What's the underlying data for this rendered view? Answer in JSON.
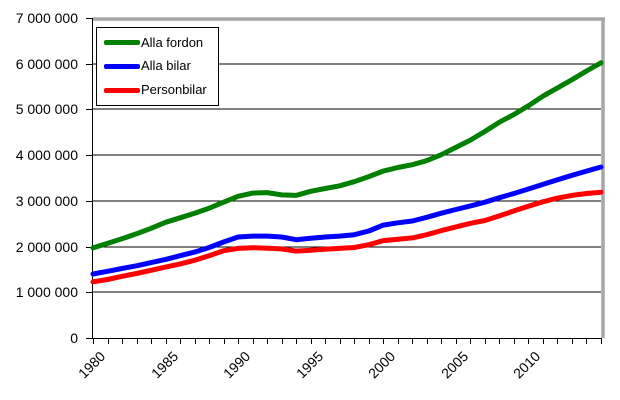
{
  "chart_data": {
    "type": "line",
    "title": "",
    "xlabel": "",
    "ylabel": "",
    "grid": true,
    "legend_position": "top-left",
    "axis_color": "#000000",
    "border_shadow_color": "#a6a6a6",
    "background_color": "#ffffff",
    "ylim": [
      0,
      7000000
    ],
    "ytick_step": 1000000,
    "ytick_labels": [
      "0",
      "1 000 000",
      "2 000 000",
      "3 000 000",
      "4 000 000",
      "5 000 000",
      "6 000 000",
      "7 000 000"
    ],
    "xtick_years_labeled": [
      1980,
      1985,
      1990,
      1995,
      2000,
      2005,
      2010
    ],
    "x": [
      1980,
      1981,
      1982,
      1983,
      1984,
      1985,
      1986,
      1987,
      1988,
      1989,
      1990,
      1991,
      1992,
      1993,
      1994,
      1995,
      1996,
      1997,
      1998,
      1999,
      2000,
      2001,
      2002,
      2003,
      2004,
      2005,
      2006,
      2007,
      2008,
      2009,
      2010,
      2011,
      2012,
      2013,
      2014,
      2015
    ],
    "series": [
      {
        "name": "Alla fordon",
        "color": "#008000",
        "values": [
          1970000,
          2070000,
          2170000,
          2280000,
          2400000,
          2530000,
          2630000,
          2730000,
          2840000,
          2970000,
          3100000,
          3170000,
          3180000,
          3130000,
          3120000,
          3210000,
          3270000,
          3330000,
          3420000,
          3530000,
          3650000,
          3730000,
          3790000,
          3880000,
          4010000,
          4170000,
          4330000,
          4520000,
          4720000,
          4890000,
          5080000,
          5290000,
          5470000,
          5650000,
          5840000,
          6020000
        ]
      },
      {
        "name": "Alla bilar",
        "color": "#0000ff",
        "values": [
          1400000,
          1460000,
          1520000,
          1580000,
          1650000,
          1720000,
          1800000,
          1880000,
          1980000,
          2100000,
          2210000,
          2230000,
          2230000,
          2210000,
          2150000,
          2180000,
          2210000,
          2230000,
          2260000,
          2340000,
          2470000,
          2520000,
          2560000,
          2640000,
          2730000,
          2810000,
          2890000,
          2970000,
          3070000,
          3160000,
          3260000,
          3360000,
          3460000,
          3560000,
          3650000,
          3740000
        ]
      },
      {
        "name": "Personbilar",
        "color": "#ff0000",
        "values": [
          1230000,
          1280000,
          1350000,
          1410000,
          1480000,
          1550000,
          1620000,
          1700000,
          1800000,
          1910000,
          1960000,
          1975000,
          1965000,
          1950000,
          1900000,
          1920000,
          1940000,
          1960000,
          1980000,
          2040000,
          2130000,
          2160000,
          2190000,
          2260000,
          2350000,
          2430000,
          2510000,
          2570000,
          2670000,
          2780000,
          2880000,
          2980000,
          3060000,
          3120000,
          3160000,
          3190000
        ]
      }
    ]
  }
}
